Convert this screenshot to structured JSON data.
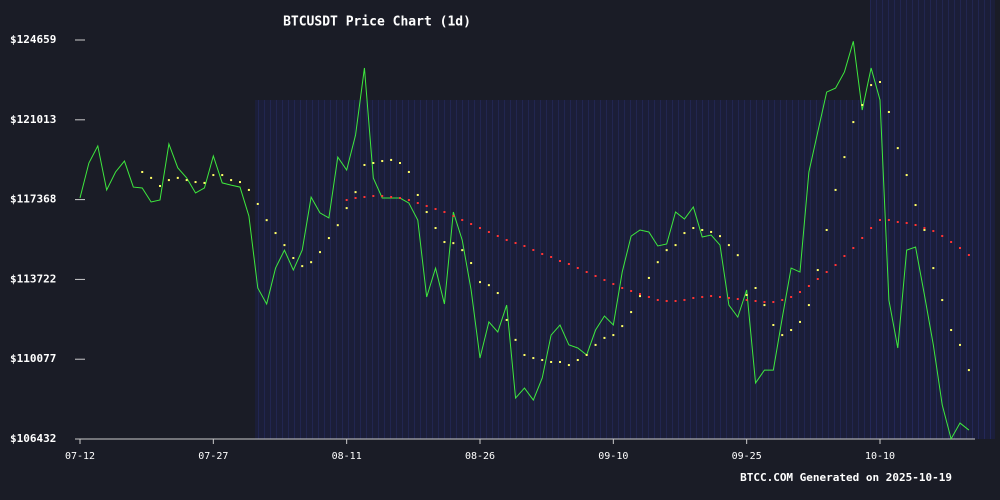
{
  "chart_data": {
    "type": "line",
    "title": "BTCUSDT Price Chart (1d)",
    "footer": "BTCC.COM Generated on 2025-10-19",
    "categories": [
      "07-12",
      null,
      null,
      null,
      null,
      null,
      null,
      null,
      null,
      null,
      null,
      null,
      null,
      null,
      null,
      "07-27",
      null,
      null,
      null,
      null,
      null,
      null,
      null,
      null,
      null,
      null,
      null,
      null,
      null,
      null,
      "08-11",
      null,
      null,
      null,
      null,
      null,
      null,
      null,
      null,
      null,
      null,
      null,
      null,
      null,
      null,
      "08-26",
      null,
      null,
      null,
      null,
      null,
      null,
      null,
      null,
      null,
      null,
      null,
      null,
      null,
      null,
      "09-10",
      null,
      null,
      null,
      null,
      null,
      null,
      null,
      null,
      null,
      null,
      null,
      null,
      null,
      null,
      "09-25",
      null,
      null,
      null,
      null,
      null,
      null,
      null,
      null,
      null,
      null,
      null,
      null,
      null,
      null,
      "10-10",
      null,
      null,
      null,
      null,
      null,
      null,
      null,
      null,
      null,
      null
    ],
    "series": [
      {
        "color": "#3ee83e",
        "style": "line",
        "values": [
          117440,
          119040,
          119820,
          117810,
          118630,
          119130,
          117940,
          117900,
          117260,
          117350,
          119910,
          118820,
          118360,
          117670,
          117900,
          119360,
          118130,
          118030,
          117940,
          116620,
          113330,
          112600,
          114240,
          115060,
          114150,
          115060,
          117480,
          116760,
          116530,
          119310,
          118720,
          120320,
          123380,
          118350,
          117440,
          117440,
          117440,
          117210,
          116430,
          112920,
          114240,
          112600,
          116800,
          115520,
          113240,
          110130,
          111780,
          111320,
          112550,
          108300,
          108760,
          108210,
          109220,
          111180,
          111640,
          110730,
          110590,
          110270,
          111410,
          112050,
          111640,
          114060,
          115700,
          115980,
          115890,
          115250,
          115340,
          116800,
          116480,
          117030,
          115660,
          115750,
          115290,
          112550,
          112000,
          113240,
          108990,
          109580,
          109580,
          111960,
          114240,
          114060,
          118630,
          120460,
          122280,
          122460,
          123200,
          124600,
          121460,
          123380,
          121920,
          112780,
          110590,
          115060,
          115200,
          113010,
          110730,
          107990,
          106440,
          107160,
          106840
        ]
      },
      {
        "color": "#ffff66",
        "style": "dots",
        "values": [
          null,
          null,
          null,
          null,
          null,
          null,
          null,
          118630,
          118360,
          117990,
          118260,
          118360,
          118260,
          118170,
          118130,
          118490,
          118490,
          118260,
          118170,
          117810,
          117170,
          116430,
          115840,
          115290,
          114700,
          114330,
          114510,
          114970,
          115610,
          116200,
          116980,
          117710,
          118950,
          119040,
          119130,
          119180,
          119040,
          118630,
          117580,
          116800,
          116070,
          115430,
          115380,
          115060,
          114470,
          113600,
          113460,
          113100,
          111870,
          110960,
          110270,
          110130,
          110040,
          109950,
          109950,
          109810,
          110040,
          110270,
          110730,
          111050,
          111180,
          111590,
          112230,
          112960,
          113790,
          114510,
          115060,
          115290,
          115840,
          116070,
          115980,
          115890,
          115700,
          115290,
          114830,
          113010,
          113330,
          112550,
          111640,
          111180,
          111410,
          111780,
          112550,
          114150,
          115980,
          117810,
          119310,
          120910,
          121690,
          122600,
          122740,
          121370,
          119720,
          118490,
          117120,
          115980,
          114240,
          112780,
          111410,
          110730,
          109580
        ]
      },
      {
        "color": "#ff3333",
        "style": "dots",
        "values": [
          null,
          null,
          null,
          null,
          null,
          null,
          null,
          null,
          null,
          null,
          null,
          null,
          null,
          null,
          null,
          null,
          null,
          null,
          null,
          null,
          null,
          null,
          null,
          null,
          null,
          null,
          null,
          null,
          null,
          null,
          117350,
          117441,
          117487,
          117532,
          117532,
          117487,
          117441,
          117350,
          117212,
          117075,
          116938,
          116801,
          116619,
          116436,
          116253,
          116070,
          115888,
          115705,
          115522,
          115385,
          115248,
          115066,
          114883,
          114746,
          114563,
          114426,
          114243,
          114061,
          113878,
          113695,
          113512,
          113330,
          113193,
          113056,
          112919,
          112782,
          112736,
          112736,
          112782,
          112873,
          112919,
          112964,
          112919,
          112873,
          112827,
          112782,
          112736,
          112690,
          112690,
          112782,
          112919,
          113147,
          113421,
          113741,
          114061,
          114380,
          114791,
          115157,
          115614,
          116070,
          116436,
          116436,
          116345,
          116299,
          116208,
          116070,
          115933,
          115705,
          115431,
          115157,
          114837
        ]
      }
    ],
    "ylim": [
      106432,
      124659
    ],
    "yticks": [
      {
        "value": 106432,
        "label": "$106432"
      },
      {
        "value": 110077,
        "label": "$110077"
      },
      {
        "value": 113722,
        "label": "$113722"
      },
      {
        "value": 117368,
        "label": "$117368"
      },
      {
        "value": 121013,
        "label": "$121013"
      },
      {
        "value": 124659,
        "label": "$124659"
      }
    ]
  }
}
